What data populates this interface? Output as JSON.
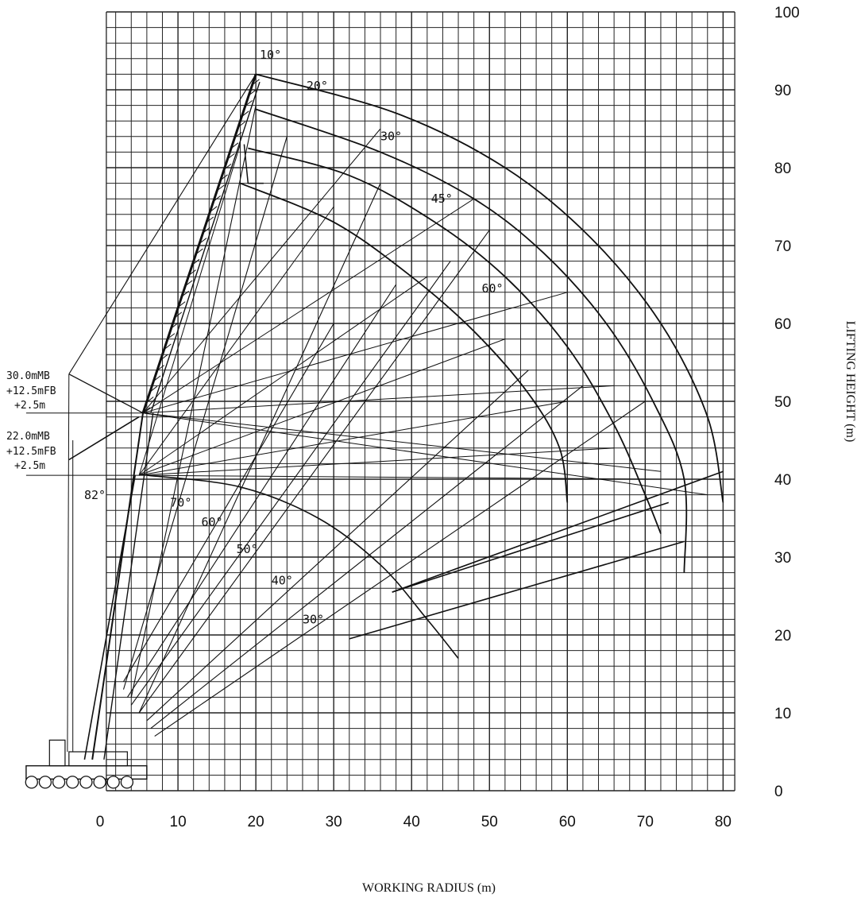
{
  "chart_data": {
    "type": "range-diagram",
    "xlabel": "WORKING RADIUS (m)",
    "ylabel": "LIFTING HEIGHT (m)",
    "xlim": [
      -10,
      82
    ],
    "ylim": [
      0,
      100
    ],
    "x_ticks": [
      "0",
      "10",
      "20",
      "30",
      "40",
      "50",
      "60",
      "70",
      "80"
    ],
    "y_ticks": [
      "0",
      "10",
      "20",
      "30",
      "40",
      "50",
      "60",
      "70",
      "80",
      "90",
      "100"
    ],
    "grid": true,
    "main_boom_angle_label": "82°",
    "configurations": [
      {
        "line1": "30.0mMB",
        "line2": "+12.5mFB",
        "line3": "+2.5m",
        "pivot_height": 48.5
      },
      {
        "line1": "22.0mMB",
        "line2": "+12.5mFB",
        "line3": "+2.5m",
        "pivot_height": 40.5
      }
    ],
    "upper_angle_labels": [
      "10°",
      "20°",
      "30°",
      "45°",
      "60°"
    ],
    "lower_angle_labels": [
      "70°",
      "60°",
      "50°",
      "40°",
      "30°"
    ],
    "upper_envelopes": [
      {
        "name": "10°",
        "points": [
          [
            20,
            92
          ],
          [
            38,
            87
          ],
          [
            52,
            80
          ],
          [
            63,
            71
          ],
          [
            72,
            60
          ],
          [
            78,
            48
          ],
          [
            80,
            37
          ]
        ]
      },
      {
        "name": "20°",
        "points": [
          [
            20,
            87.5
          ],
          [
            36,
            82
          ],
          [
            48,
            76
          ],
          [
            57,
            69
          ],
          [
            65,
            60
          ],
          [
            71,
            50
          ],
          [
            75,
            40
          ],
          [
            75,
            28
          ]
        ]
      },
      {
        "name": "30°",
        "points": [
          [
            19,
            82.5
          ],
          [
            32,
            79
          ],
          [
            43,
            73
          ],
          [
            52,
            66
          ],
          [
            60,
            57
          ],
          [
            66,
            47
          ],
          [
            70,
            38
          ],
          [
            72,
            33
          ]
        ]
      },
      {
        "name": "45°",
        "points": [
          [
            18,
            78
          ],
          [
            30,
            73
          ],
          [
            40,
            66
          ],
          [
            48,
            59
          ],
          [
            55,
            51
          ],
          [
            59,
            44
          ],
          [
            60,
            37
          ]
        ]
      }
    ],
    "lower_envelope": {
      "name": "lower",
      "points": [
        [
          6,
          40.5
        ],
        [
          18,
          39
        ],
        [
          28,
          35
        ],
        [
          36,
          29
        ],
        [
          42,
          22
        ],
        [
          46,
          17
        ]
      ]
    },
    "lower_limit_lines": [
      {
        "from": [
          32,
          19.5
        ],
        "to": [
          75,
          32
        ]
      },
      {
        "from": [
          37.5,
          25.5
        ],
        "to": [
          73,
          37
        ]
      },
      {
        "from": [
          37.5,
          25.5
        ],
        "to": [
          80,
          41
        ]
      }
    ]
  }
}
